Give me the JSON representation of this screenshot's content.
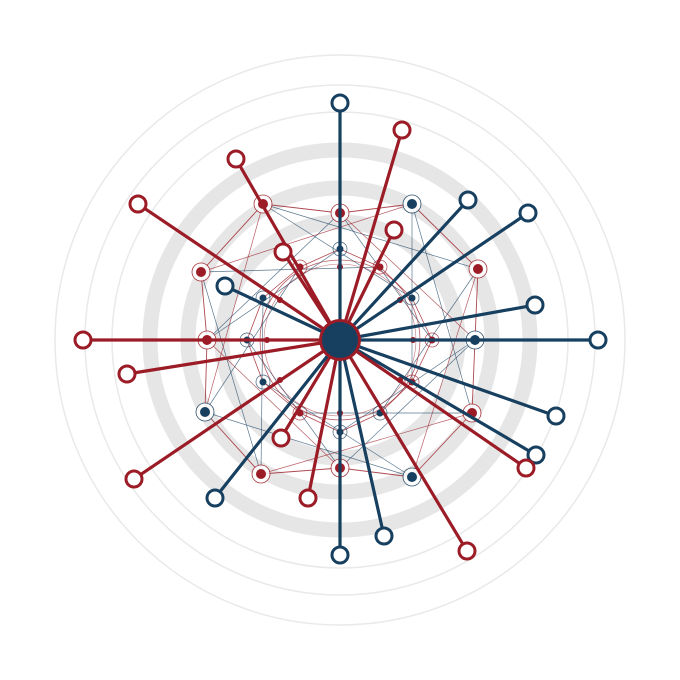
{
  "diagram": {
    "type": "radial-network",
    "colors": {
      "blue": "#173f5f",
      "red": "#9b1c26",
      "ring": "#e6e6e6",
      "ring_thin": "#e9e9e9",
      "background": "#ffffff"
    },
    "spokes": [
      {
        "color": "blue"
      },
      {
        "color": "red"
      },
      {
        "color": "blue"
      },
      {
        "color": "blue"
      },
      {
        "color": "blue"
      },
      {
        "color": "blue"
      },
      {
        "color": "blue"
      },
      {
        "color": "blue"
      },
      {
        "color": "red"
      },
      {
        "color": "red"
      },
      {
        "color": "blue"
      },
      {
        "color": "blue"
      },
      {
        "color": "red"
      },
      {
        "color": "red"
      },
      {
        "color": "red"
      },
      {
        "color": "red"
      },
      {
        "color": "red"
      },
      {
        "color": "red"
      },
      {
        "color": "blue"
      },
      {
        "color": "red"
      },
      {
        "color": "red"
      },
      {
        "color": "blue"
      },
      {
        "color": "red"
      }
    ]
  }
}
